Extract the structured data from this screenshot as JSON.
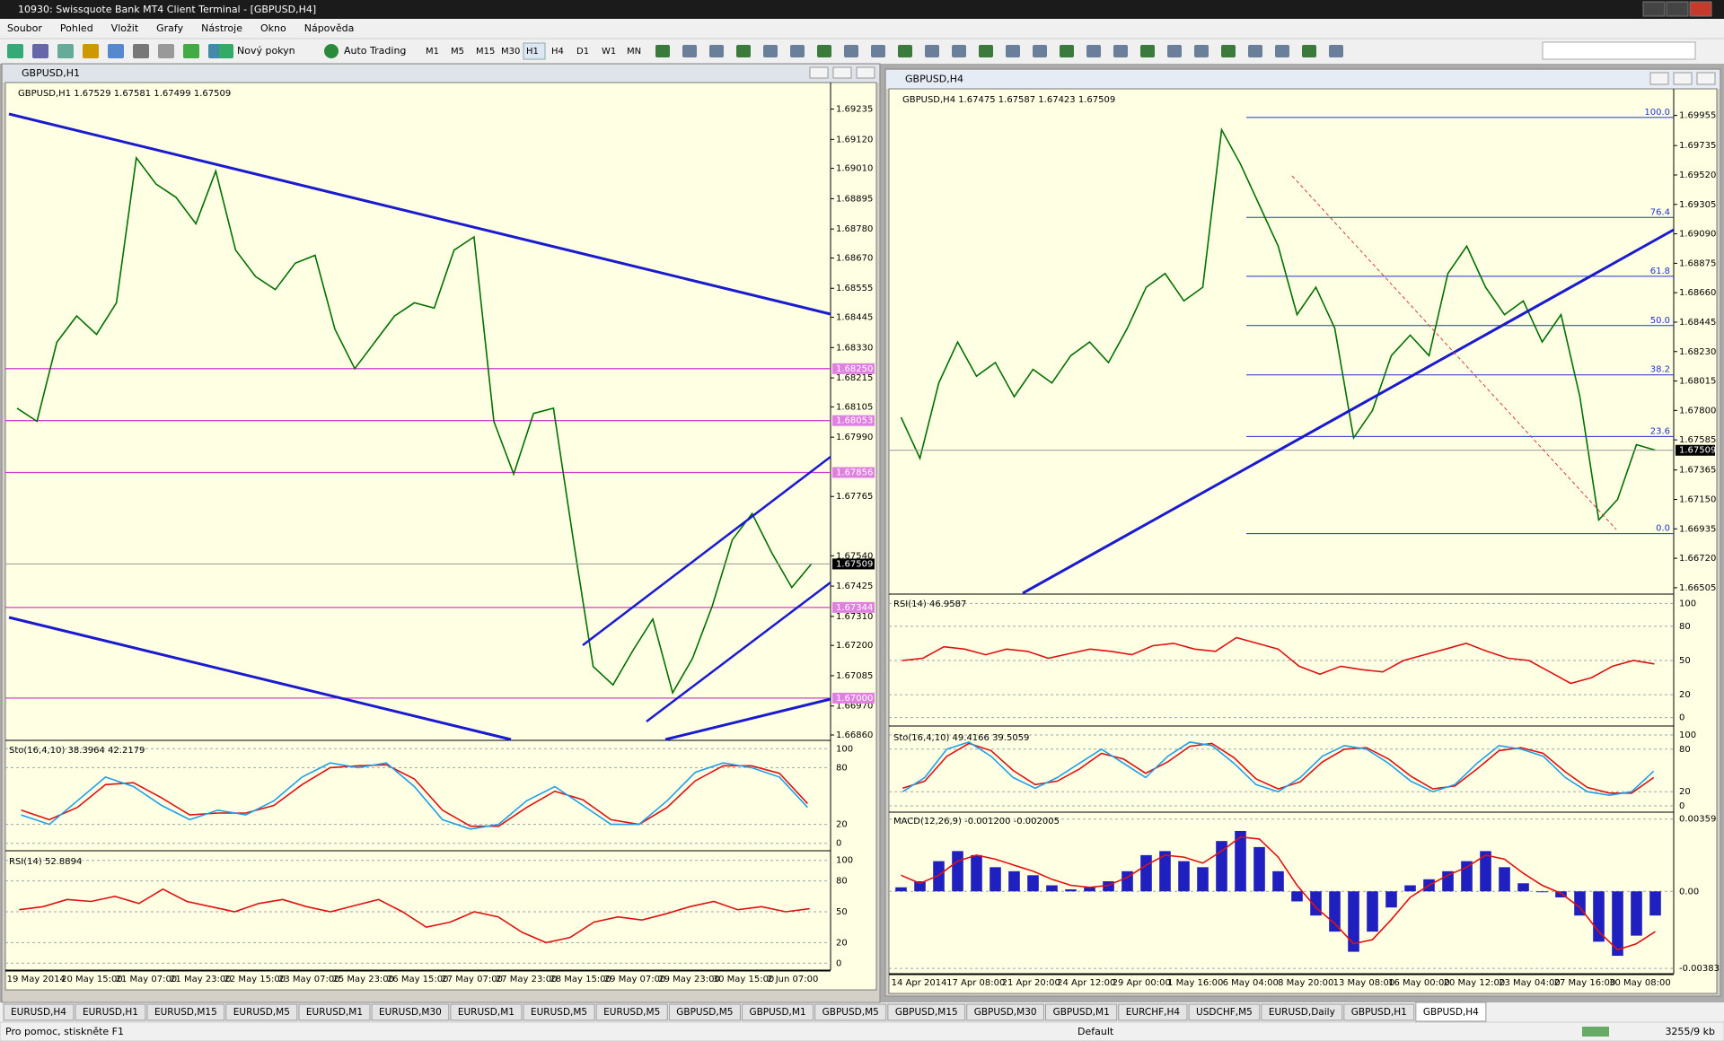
{
  "window_title": "10930: Swissquote Bank MT4 Client Terminal - [GBPUSD,H4]",
  "menu": [
    "Soubor",
    "Pohled",
    "Vložit",
    "Grafy",
    "Nástroje",
    "Okno",
    "Nápověda"
  ],
  "toolbar": {
    "new_order": "Nový pokyn",
    "auto_trading": "Auto Trading",
    "timeframes": [
      "M1",
      "M5",
      "M15",
      "M30",
      "H1",
      "H4",
      "D1",
      "W1",
      "MN"
    ]
  },
  "charts": [
    {
      "window": "GBPUSD,H1",
      "info": "GBPUSD,H1  1.67529 1.67581 1.67499 1.67509",
      "ylim": [
        1.66843,
        1.69322
      ],
      "yticks": [
        1.69235,
        {
          "value": 1.6912,
          "label": "1.69120"
        },
        {
          "value": 1.6901,
          "label": "1.69010"
        },
        1.68895,
        {
          "value": 1.6878,
          "label": "1.68780"
        },
        {
          "value": 1.6867,
          "label": "1.68670"
        },
        1.68555,
        1.68445,
        {
          "value": 1.6833,
          "label": "1.68330"
        },
        1.68215,
        1.68105,
        {
          "value": 1.6799,
          "label": "1.67990"
        },
        1.67765,
        {
          "value": 1.6754,
          "label": "1.67540"
        },
        1.67425,
        {
          "value": 1.6731,
          "label": "1.67310"
        },
        {
          "value": 1.672,
          "label": "1.67200"
        },
        1.67085,
        {
          "value": 1.6697,
          "label": "1.66970"
        },
        {
          "value": 1.6686,
          "label": "1.66860"
        }
      ],
      "levels": [
        {
          "value": 1.6825,
          "label": "1.68250"
        },
        1.68053,
        1.67856,
        1.67344,
        {
          "value": 1.67,
          "label": "1.67000"
        }
      ],
      "current": 1.67509,
      "close": [
        1.681,
        1.6805,
        1.6835,
        1.6845,
        1.6838,
        1.685,
        1.6905,
        1.6895,
        1.689,
        1.688,
        1.69,
        1.687,
        1.686,
        1.6855,
        1.6865,
        1.6868,
        1.684,
        1.6825,
        1.6835,
        1.6845,
        1.685,
        1.6848,
        1.687,
        1.6875,
        1.6805,
        1.6785,
        1.6808,
        1.681,
        1.676,
        1.6712,
        1.6705,
        1.6718,
        1.673,
        1.6702,
        1.6715,
        1.6735,
        1.676,
        1.677,
        1.6755,
        1.6742,
        1.6751
      ],
      "panes": [
        {
          "label": "Sto(16,4,10) 38.3964 42.2179",
          "ylim": [
            -5,
            105
          ],
          "yticks": [
            100,
            80,
            20,
            0
          ],
          "main": [
            30,
            20,
            45,
            70,
            60,
            40,
            25,
            35,
            30,
            45,
            70,
            85,
            80,
            85,
            60,
            25,
            15,
            20,
            45,
            60,
            40,
            20,
            20,
            45,
            75,
            85,
            80,
            70,
            38
          ],
          "signal": [
            35,
            25,
            38,
            62,
            64,
            48,
            30,
            32,
            32,
            40,
            62,
            80,
            82,
            83,
            68,
            35,
            18,
            18,
            38,
            55,
            46,
            25,
            20,
            38,
            66,
            82,
            82,
            74,
            42
          ]
        },
        {
          "label": "RSI(14) 52.8894",
          "ylim": [
            -5,
            105
          ],
          "yticks": [
            100,
            80,
            50,
            20,
            0
          ],
          "main": [
            52,
            55,
            62,
            60,
            65,
            58,
            72,
            60,
            55,
            50,
            58,
            62,
            55,
            50,
            56,
            62,
            50,
            35,
            40,
            50,
            45,
            30,
            20,
            25,
            40,
            45,
            42,
            48,
            55,
            60,
            52,
            55,
            50,
            53
          ]
        }
      ],
      "dates": [
        "19 May 2014",
        "20 May 15:00",
        "21 May 07:00",
        "21 May 23:00",
        "22 May 15:00",
        "23 May 07:00",
        "25 May 23:00",
        "26 May 15:00",
        "27 May 07:00",
        "27 May 23:00",
        "28 May 15:00",
        "29 May 07:00",
        "29 May 23:00",
        "30 May 15:00",
        "2 Jun 07:00"
      ]
    },
    {
      "window": "GBPUSD,H4",
      "info": "GBPUSD,H4  1.67475 1.67587 1.67423 1.67509",
      "ylim": [
        1.66465,
        1.70123
      ],
      "yticks": [
        1.69955,
        1.69735,
        {
          "value": 1.6952,
          "label": "1.69520"
        },
        1.69305,
        {
          "value": 1.6909,
          "label": "1.69090"
        },
        1.68875,
        {
          "value": 1.6866,
          "label": "1.68660"
        },
        1.68445,
        {
          "value": 1.6823,
          "label": "1.68230"
        },
        1.68015,
        {
          "value": 1.678,
          "label": "1.67800"
        },
        1.67585,
        1.67365,
        {
          "value": 1.6715,
          "label": "1.67150"
        },
        1.66935,
        {
          "value": 1.6672,
          "label": "1.66720"
        },
        1.66505
      ],
      "fib": [
        {
          "ratio": "100.0",
          "price": 1.6994
        },
        {
          "ratio": "76.4",
          "price": 1.6921
        },
        {
          "ratio": "61.8",
          "price": 1.6878
        },
        {
          "ratio": "50.0",
          "price": 1.6842
        },
        {
          "ratio": "38.2",
          "price": 1.6806
        },
        {
          "ratio": "23.6",
          "price": 1.6761
        },
        {
          "ratio": "0.0",
          "price": 1.669
        }
      ],
      "current": 1.67509,
      "close": [
        1.6775,
        1.6745,
        1.68,
        1.683,
        1.6805,
        1.6815,
        1.679,
        1.681,
        1.68,
        1.682,
        1.683,
        1.6815,
        1.684,
        1.687,
        1.688,
        1.686,
        1.687,
        1.6985,
        1.696,
        1.693,
        1.69,
        1.685,
        1.687,
        1.684,
        1.676,
        1.678,
        1.682,
        1.6835,
        1.682,
        1.688,
        1.69,
        1.687,
        1.685,
        1.686,
        1.683,
        1.685,
        1.679,
        1.67,
        1.6715,
        1.6755,
        1.6751
      ],
      "panes": [
        {
          "label": "RSI(14) 46.9587",
          "ylim": [
            -5,
            105
          ],
          "yticks": [
            100,
            80,
            50,
            20,
            0
          ],
          "main": [
            50,
            52,
            62,
            60,
            55,
            60,
            58,
            52,
            56,
            60,
            58,
            55,
            63,
            65,
            60,
            58,
            70,
            65,
            60,
            45,
            38,
            45,
            42,
            40,
            50,
            55,
            60,
            65,
            58,
            52,
            50,
            40,
            30,
            35,
            45,
            50,
            47
          ]
        },
        {
          "label": "Sto(16,4,10) 49.4166 39.5059",
          "ylim": [
            -5,
            105
          ],
          "yticks": [
            100,
            80,
            20,
            0
          ],
          "main": [
            20,
            40,
            80,
            90,
            70,
            40,
            25,
            40,
            60,
            80,
            60,
            40,
            70,
            90,
            85,
            60,
            30,
            20,
            40,
            70,
            85,
            80,
            60,
            35,
            20,
            30,
            60,
            85,
            80,
            70,
            40,
            20,
            15,
            20,
            49
          ],
          "signal": [
            25,
            35,
            70,
            88,
            78,
            50,
            30,
            35,
            52,
            74,
            66,
            46,
            62,
            84,
            88,
            68,
            38,
            24,
            34,
            62,
            80,
            82,
            66,
            42,
            24,
            28,
            52,
            78,
            82,
            74,
            48,
            26,
            18,
            18,
            40
          ]
        },
        {
          "label": "MACD(12,26,9) -0.001200 -0.002005",
          "ylim": [
            -0.004,
            0.0038
          ],
          "yticks": [
            0.00359,
            {
              "value": 0,
              "label": "0.00"
            },
            -0.00383
          ],
          "hist": [
            0.0002,
            0.0005,
            0.0015,
            0.002,
            0.0018,
            0.0012,
            0.001,
            0.0008,
            0.0003,
            0.0001,
            0.0002,
            0.0005,
            0.001,
            0.0018,
            0.002,
            0.0015,
            0.0012,
            0.0025,
            0.003,
            0.0022,
            0.001,
            -0.0005,
            -0.0012,
            -0.002,
            -0.003,
            -0.002,
            -0.0008,
            0.0003,
            0.0006,
            0.001,
            0.0015,
            0.002,
            0.0012,
            0.0004,
            0,
            -0.0003,
            -0.0012,
            -0.0025,
            -0.0032,
            -0.0022,
            -0.0012
          ],
          "signal": [
            0.0008,
            0.0004,
            0.0008,
            0.0015,
            0.0018,
            0.0016,
            0.0013,
            0.001,
            0.0006,
            0.0003,
            0.0002,
            0.0003,
            0.0007,
            0.0013,
            0.0018,
            0.0017,
            0.0014,
            0.002,
            0.0027,
            0.0026,
            0.0017,
            0.0003,
            -0.0008,
            -0.0016,
            -0.0026,
            -0.0024,
            -0.0014,
            -0.0003,
            0.0003,
            0.0008,
            0.0012,
            0.0018,
            0.0016,
            0.0009,
            0.0003,
            -0.0001,
            -0.0008,
            -0.002,
            -0.0029,
            -0.0026,
            -0.002
          ]
        }
      ],
      "dates": [
        "14 Apr 2014",
        "17 Apr 08:00",
        "21 Apr 20:00",
        "24 Apr 12:00",
        "29 Apr 00:00",
        "1 May 16:00",
        "6 May 04:00",
        "8 May 20:00",
        "13 May 08:00",
        "16 May 00:00",
        "20 May 12:00",
        "23 May 04:00",
        "27 May 16:00",
        "30 May 08:00"
      ]
    }
  ],
  "tabs": [
    "EURUSD,H4",
    "EURUSD,H1",
    "EURUSD,M15",
    "EURUSD,M5",
    "EURUSD,M1",
    "EURUSD,M30",
    "EURUSD,M1",
    "EURUSD,M5",
    "EURUSD,M5",
    "GBPUSD,M5",
    "GBPUSD,M1",
    "GBPUSD,M5",
    "GBPUSD,M15",
    "GBPUSD,M30",
    "GBPUSD,M1",
    "EURCHF,H4",
    "USDCHF,M5",
    "EURUSD,Daily",
    "GBPUSD,H1",
    "GBPUSD,H4"
  ],
  "status": {
    "help": "Pro pomoc, stiskněte F1",
    "profile": "Default",
    "traffic": "3255/9 kb"
  }
}
